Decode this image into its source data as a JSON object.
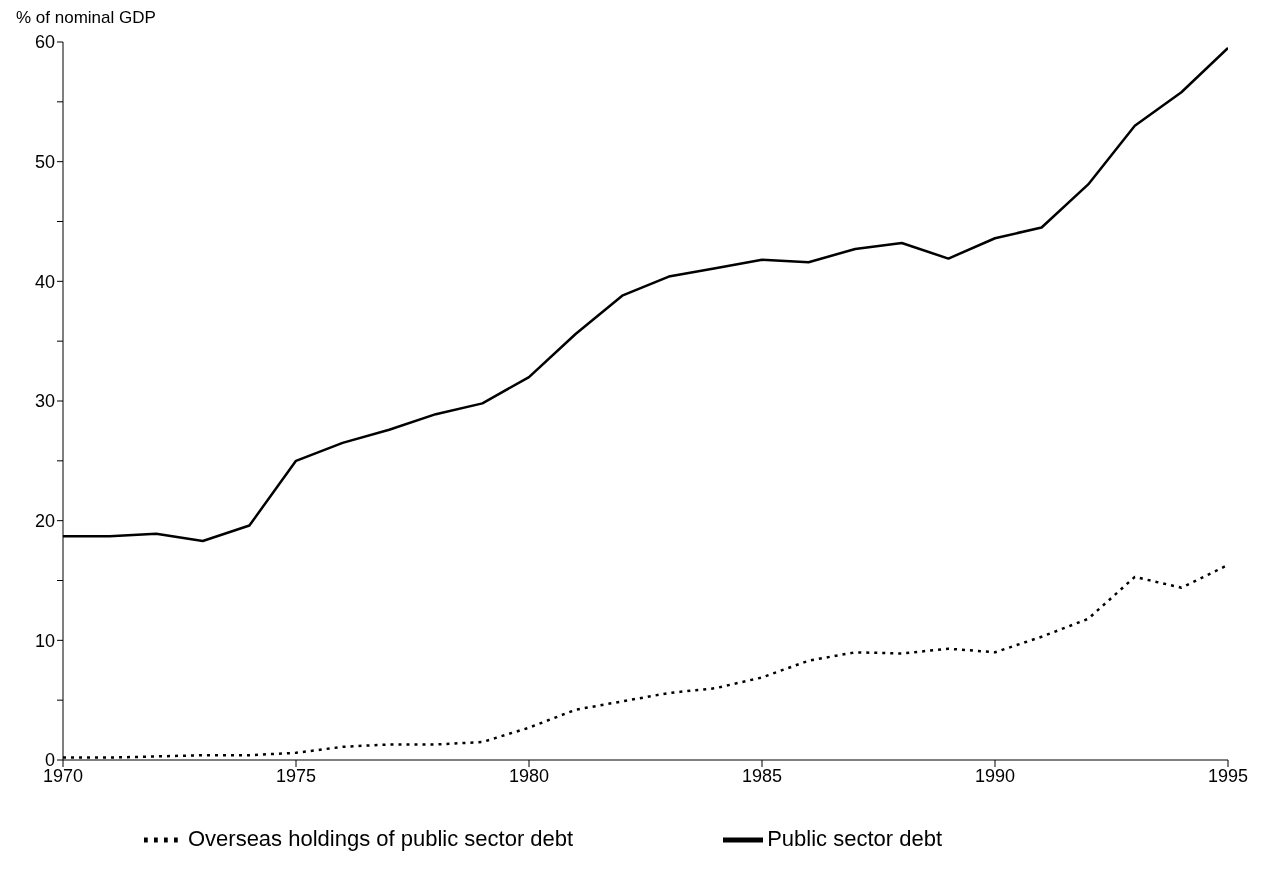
{
  "chart_data": {
    "type": "line",
    "ylabel": "% of nominal GDP",
    "x": [
      1970,
      1971,
      1972,
      1973,
      1974,
      1975,
      1976,
      1977,
      1978,
      1979,
      1980,
      1981,
      1982,
      1983,
      1984,
      1985,
      1986,
      1987,
      1988,
      1989,
      1990,
      1991,
      1992,
      1993,
      1994,
      1995
    ],
    "series": [
      {
        "name": "Public sector debt",
        "color": "#000000",
        "line_style": "solid",
        "values": [
          18.7,
          18.7,
          18.9,
          18.3,
          19.6,
          25.0,
          26.5,
          27.6,
          28.9,
          29.8,
          32.0,
          35.6,
          38.8,
          40.4,
          41.1,
          41.8,
          41.6,
          42.7,
          43.2,
          41.9,
          43.6,
          44.5,
          48.1,
          53.0,
          55.8,
          59.5
        ]
      },
      {
        "name": "Overseas holdings of public sector debt",
        "color": "#000000",
        "line_style": "dotted",
        "values": [
          0.2,
          0.2,
          0.3,
          0.4,
          0.4,
          0.6,
          1.1,
          1.3,
          1.3,
          1.5,
          2.7,
          4.2,
          4.9,
          5.6,
          6.0,
          6.9,
          8.3,
          9.0,
          8.9,
          9.3,
          9.0,
          10.3,
          11.8,
          15.3,
          14.4,
          16.3
        ]
      }
    ],
    "xlim": [
      1970,
      1995
    ],
    "xticks": [
      1970,
      1975,
      1980,
      1985,
      1990,
      1995
    ],
    "ylim": [
      0,
      60
    ],
    "yticks": [
      0,
      {
        "value": 5,
        "label": null
      },
      10,
      {
        "value": 15,
        "label": null
      },
      20,
      {
        "value": 25,
        "label": null
      },
      30,
      {
        "value": 35,
        "label": null
      },
      40,
      {
        "value": 45,
        "label": null
      },
      50,
      {
        "value": 55,
        "label": null
      },
      60
    ],
    "grid": false,
    "legend": "bottom",
    "marker": "none"
  }
}
